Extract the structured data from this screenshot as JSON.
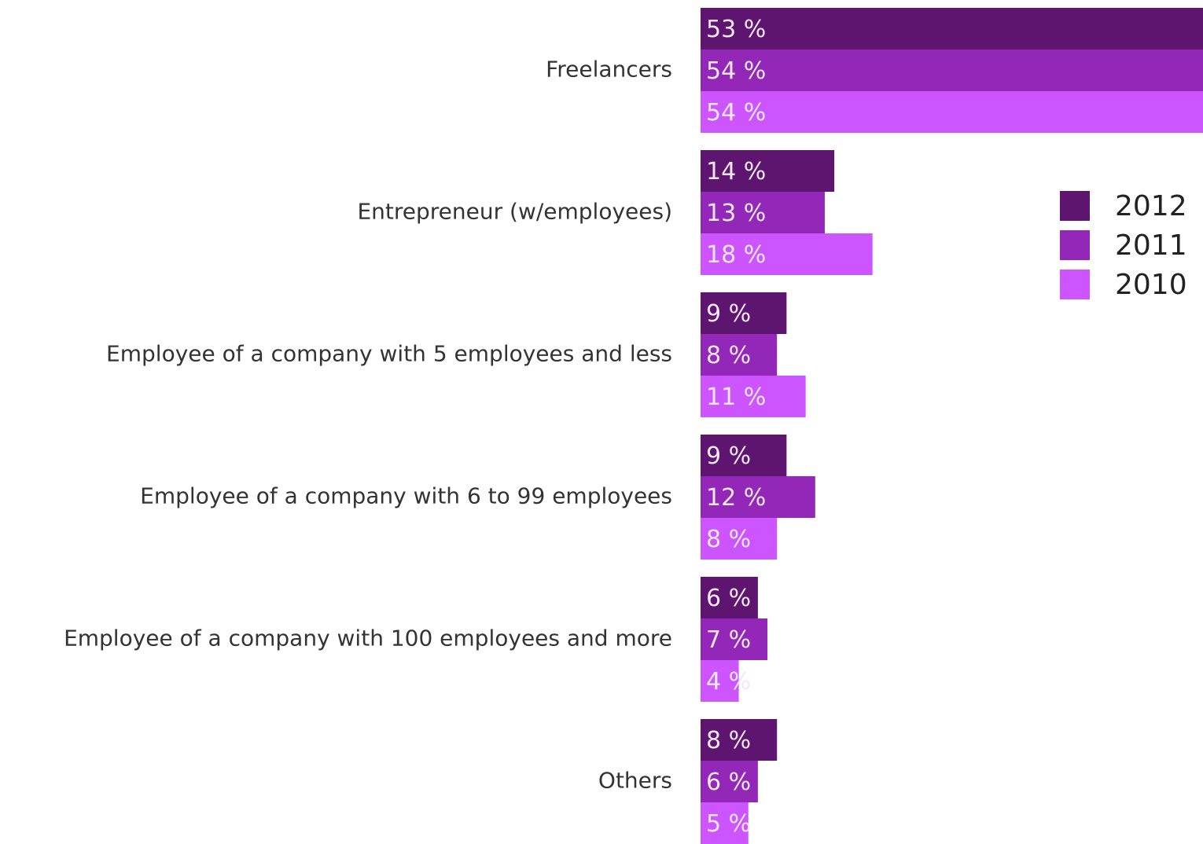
{
  "chart_data": {
    "type": "bar",
    "orientation": "horizontal",
    "categories": [
      "Freelancers",
      "Entrepreneur (w/employees)",
      "Employee of a company with 5 employees and less",
      "Employee of a company with 6 to 99 employees",
      "Employee of a company with 100 employees and more",
      "Others"
    ],
    "series": [
      {
        "name": "2012",
        "color": "#5e1570",
        "values": [
          53,
          14,
          9,
          9,
          6,
          8
        ],
        "value_labels": [
          "53 %",
          "14 %",
          "9 %",
          "9 %",
          "6 %",
          "8 %"
        ]
      },
      {
        "name": "2011",
        "color": "#9227b8",
        "values": [
          54,
          13,
          8,
          12,
          7,
          6
        ],
        "value_labels": [
          "54 %",
          "13 %",
          "8 %",
          "12 %",
          "7 %",
          "6 %"
        ]
      },
      {
        "name": "2010",
        "color": "#cc55ff",
        "values": [
          54,
          18,
          11,
          8,
          4,
          5
        ],
        "value_labels": [
          "54 %",
          "18 %",
          "11 %",
          "8 %",
          "4 %",
          "5 %"
        ]
      }
    ],
    "legend": "right"
  }
}
